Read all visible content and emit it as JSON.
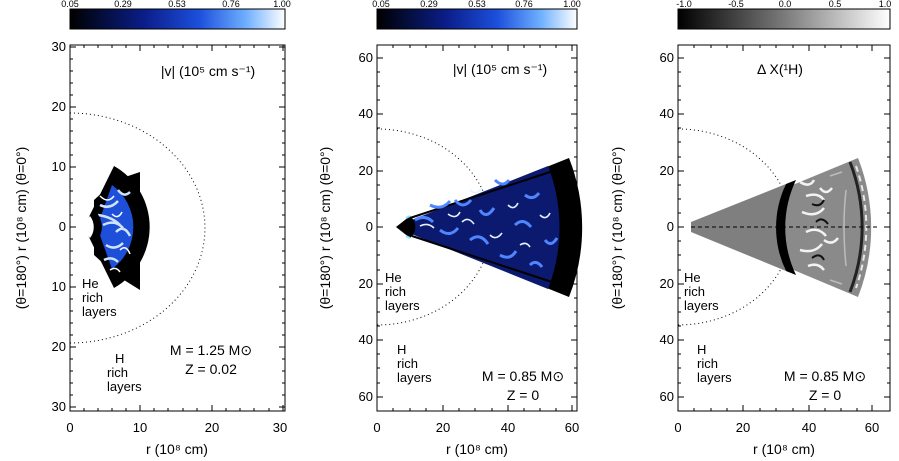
{
  "figure": {
    "panels": [
      {
        "id": "left",
        "colorbar": {
          "ticks": [
            "0.05",
            "0.29",
            "0.53",
            "0.76",
            "1.00"
          ],
          "colormap": "black-blue-white"
        },
        "quantity_label": "|v| (10⁵ cm s⁻¹)",
        "x_axis_label": "r (10⁸ cm)",
        "y_axis_label": "(θ=180°) r (10⁸ cm) (θ=0°)",
        "x_ticks": [
          "0",
          "10",
          "20",
          "30"
        ],
        "y_ticks": [
          "30",
          "20",
          "10",
          "0",
          "10",
          "20",
          "30"
        ],
        "region_labels": [
          {
            "lines": [
              "He",
              "rich",
              "layers"
            ]
          },
          {
            "lines": [
              "H",
              "rich",
              "layers"
            ]
          }
        ],
        "model_params": [
          "M = 1.25 M⊙",
          "Z = 0.02"
        ]
      },
      {
        "id": "middle",
        "colorbar": {
          "ticks": [
            "0.05",
            "0.29",
            "0.53",
            "0.76",
            "1.00"
          ],
          "colormap": "black-blue-white"
        },
        "quantity_label": "|v| (10⁵ cm s⁻¹)",
        "x_axis_label": "r (10⁸ cm)",
        "y_axis_label": "(θ=180°) r (10⁸ cm) (θ=0°)",
        "x_ticks": [
          "0",
          "20",
          "40",
          "60"
        ],
        "y_ticks": [
          "60",
          "40",
          "20",
          "0",
          "20",
          "40",
          "60"
        ],
        "region_labels": [
          {
            "lines": [
              "He",
              "rich",
              "layers"
            ]
          },
          {
            "lines": [
              "H",
              "rich",
              "layers"
            ]
          }
        ],
        "model_params": [
          "M = 0.85 M⊙",
          "Z = 0"
        ]
      },
      {
        "id": "right",
        "colorbar": {
          "ticks": [
            "-1.0",
            "-0.5",
            "0.0",
            "0.5",
            "1.0"
          ],
          "colormap": "black-gray-white"
        },
        "quantity_label": "Δ X(¹H)",
        "x_axis_label": "r (10⁸ cm)",
        "y_axis_label": "(θ=180°) r (10⁸ cm) (θ=0°)",
        "x_ticks": [
          "0",
          "20",
          "40",
          "60"
        ],
        "y_ticks": [
          "60",
          "40",
          "20",
          "0",
          "20",
          "40",
          "60"
        ],
        "region_labels": [
          {
            "lines": [
              "He",
              "rich",
              "layers"
            ]
          },
          {
            "lines": [
              "H",
              "rich",
              "layers"
            ]
          }
        ],
        "model_params": [
          "M = 0.85 M⊙",
          "Z = 0"
        ]
      }
    ]
  },
  "chart_data": [
    {
      "type": "heatmap",
      "xlim": [
        0,
        30
      ],
      "ylim": [
        -30,
        30
      ],
      "colorbar_range": [
        0.05,
        1.0
      ],
      "wedge": {
        "r_inner": 3,
        "r_outer": 12,
        "angle_deg": 120,
        "active_r": [
          4,
          9
        ]
      },
      "boundary_circle_radius": 19,
      "grid": false
    },
    {
      "type": "heatmap",
      "xlim": [
        0,
        62
      ],
      "ylim": [
        -65,
        65
      ],
      "colorbar_range": [
        0.05,
        1.0
      ],
      "wedge": {
        "r_inner": 8,
        "r_outer": 59,
        "angle_deg": 48,
        "active_r": [
          10,
          52
        ]
      },
      "boundary_circle_radius": 35,
      "grid": false
    },
    {
      "type": "heatmap",
      "xlim": [
        0,
        65
      ],
      "ylim": [
        -65,
        65
      ],
      "colorbar_range": [
        -1.0,
        1.0
      ],
      "wedge": {
        "r_inner": 4,
        "r_outer": 59,
        "angle_deg": 48,
        "interface_r": 34
      },
      "boundary_circle_radius": 35,
      "grid": false
    }
  ]
}
